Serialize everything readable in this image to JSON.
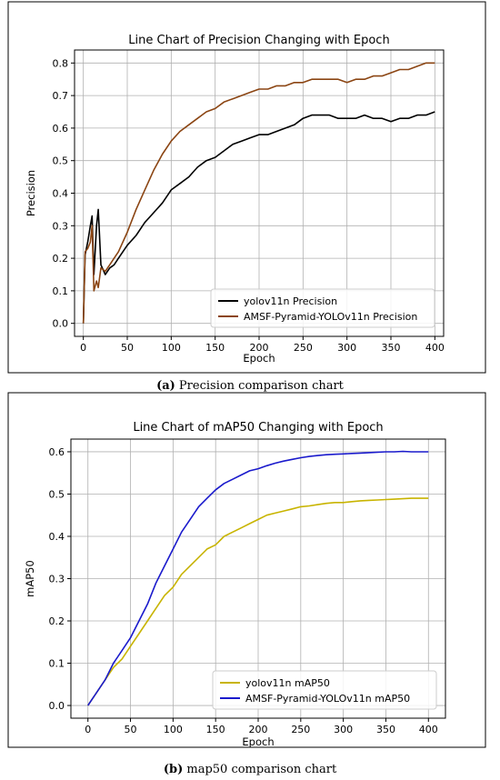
{
  "chart_data": [
    {
      "type": "line",
      "title": "Line Chart of Precision Changing with Epoch",
      "xlabel": "Epoch",
      "ylabel": "Precision",
      "xlim": [
        -10,
        410
      ],
      "ylim": [
        -0.04,
        0.84
      ],
      "xticks": [
        0,
        50,
        100,
        150,
        200,
        250,
        300,
        350,
        400
      ],
      "yticks": [
        0.0,
        0.1,
        0.2,
        0.3,
        0.4,
        0.5,
        0.6,
        0.7,
        0.8
      ],
      "grid": true,
      "legend_position": "lower-right",
      "caption": {
        "label": "(a)",
        "text": " Precision comparison chart"
      },
      "series": [
        {
          "name": "yolov11n Precision",
          "color": "#000000",
          "x": [
            0,
            2,
            5,
            8,
            10,
            12,
            15,
            17,
            20,
            25,
            30,
            35,
            40,
            50,
            60,
            70,
            80,
            90,
            100,
            110,
            120,
            130,
            140,
            150,
            160,
            170,
            180,
            190,
            200,
            210,
            220,
            230,
            240,
            250,
            260,
            270,
            280,
            290,
            300,
            310,
            320,
            330,
            340,
            350,
            360,
            370,
            380,
            390,
            400
          ],
          "y": [
            0.0,
            0.21,
            0.25,
            0.3,
            0.33,
            0.15,
            0.3,
            0.35,
            0.18,
            0.15,
            0.17,
            0.18,
            0.2,
            0.24,
            0.27,
            0.31,
            0.34,
            0.37,
            0.41,
            0.43,
            0.45,
            0.48,
            0.5,
            0.51,
            0.53,
            0.55,
            0.56,
            0.57,
            0.58,
            0.58,
            0.59,
            0.6,
            0.61,
            0.63,
            0.64,
            0.64,
            0.64,
            0.63,
            0.63,
            0.63,
            0.64,
            0.63,
            0.63,
            0.62,
            0.63,
            0.63,
            0.64,
            0.64,
            0.65
          ]
        },
        {
          "name": "AMSF-Pyramid-YOLOv11n Precision",
          "color": "#8b4513",
          "x": [
            0,
            2,
            5,
            8,
            10,
            12,
            15,
            17,
            20,
            25,
            30,
            35,
            40,
            50,
            60,
            70,
            80,
            90,
            100,
            110,
            120,
            130,
            140,
            150,
            160,
            170,
            180,
            190,
            200,
            210,
            220,
            230,
            240,
            250,
            260,
            270,
            280,
            290,
            300,
            310,
            320,
            330,
            340,
            350,
            360,
            370,
            380,
            390,
            400
          ],
          "y": [
            0.0,
            0.22,
            0.23,
            0.25,
            0.3,
            0.1,
            0.13,
            0.11,
            0.17,
            0.16,
            0.18,
            0.2,
            0.22,
            0.28,
            0.35,
            0.41,
            0.47,
            0.52,
            0.56,
            0.59,
            0.61,
            0.63,
            0.65,
            0.66,
            0.68,
            0.69,
            0.7,
            0.71,
            0.72,
            0.72,
            0.73,
            0.73,
            0.74,
            0.74,
            0.75,
            0.75,
            0.75,
            0.75,
            0.74,
            0.75,
            0.75,
            0.76,
            0.76,
            0.77,
            0.78,
            0.78,
            0.79,
            0.8,
            0.8
          ]
        }
      ]
    },
    {
      "type": "line",
      "title": "Line Chart of mAP50 Changing with Epoch",
      "xlabel": "Epoch",
      "ylabel": "mAP50",
      "xlim": [
        -20,
        420
      ],
      "ylim": [
        -0.03,
        0.63
      ],
      "xticks": [
        0,
        50,
        100,
        150,
        200,
        250,
        300,
        350,
        400
      ],
      "yticks": [
        0.0,
        0.1,
        0.2,
        0.3,
        0.4,
        0.5,
        0.6
      ],
      "grid": true,
      "legend_position": "lower-right",
      "caption": {
        "label": "(b)",
        "text": " map50 comparison chart"
      },
      "series": [
        {
          "name": "yolov11n mAP50",
          "color": "#c8b400",
          "x": [
            0,
            10,
            20,
            30,
            40,
            50,
            60,
            70,
            80,
            90,
            100,
            110,
            120,
            130,
            140,
            150,
            160,
            170,
            180,
            190,
            200,
            210,
            220,
            230,
            240,
            250,
            260,
            270,
            280,
            290,
            300,
            310,
            320,
            330,
            340,
            350,
            360,
            370,
            380,
            390,
            400
          ],
          "y": [
            0.0,
            0.03,
            0.06,
            0.09,
            0.11,
            0.14,
            0.17,
            0.2,
            0.23,
            0.26,
            0.28,
            0.31,
            0.33,
            0.35,
            0.37,
            0.38,
            0.4,
            0.41,
            0.42,
            0.43,
            0.44,
            0.45,
            0.455,
            0.46,
            0.465,
            0.47,
            0.472,
            0.475,
            0.478,
            0.48,
            0.48,
            0.482,
            0.484,
            0.485,
            0.486,
            0.487,
            0.488,
            0.489,
            0.49,
            0.49,
            0.49
          ]
        },
        {
          "name": "AMSF-Pyramid-YOLOv11n mAP50",
          "color": "#1a1acc",
          "x": [
            0,
            10,
            20,
            30,
            40,
            50,
            60,
            70,
            80,
            90,
            100,
            110,
            120,
            130,
            140,
            150,
            160,
            170,
            180,
            190,
            200,
            210,
            220,
            230,
            240,
            250,
            260,
            270,
            280,
            290,
            300,
            310,
            320,
            330,
            340,
            350,
            360,
            370,
            380,
            390,
            400
          ],
          "y": [
            0.0,
            0.03,
            0.06,
            0.1,
            0.13,
            0.16,
            0.2,
            0.24,
            0.29,
            0.33,
            0.37,
            0.41,
            0.44,
            0.47,
            0.49,
            0.51,
            0.525,
            0.535,
            0.545,
            0.555,
            0.56,
            0.567,
            0.573,
            0.578,
            0.582,
            0.586,
            0.589,
            0.591,
            0.593,
            0.594,
            0.595,
            0.596,
            0.597,
            0.598,
            0.599,
            0.6,
            0.6,
            0.601,
            0.6,
            0.6,
            0.6
          ]
        }
      ]
    }
  ]
}
